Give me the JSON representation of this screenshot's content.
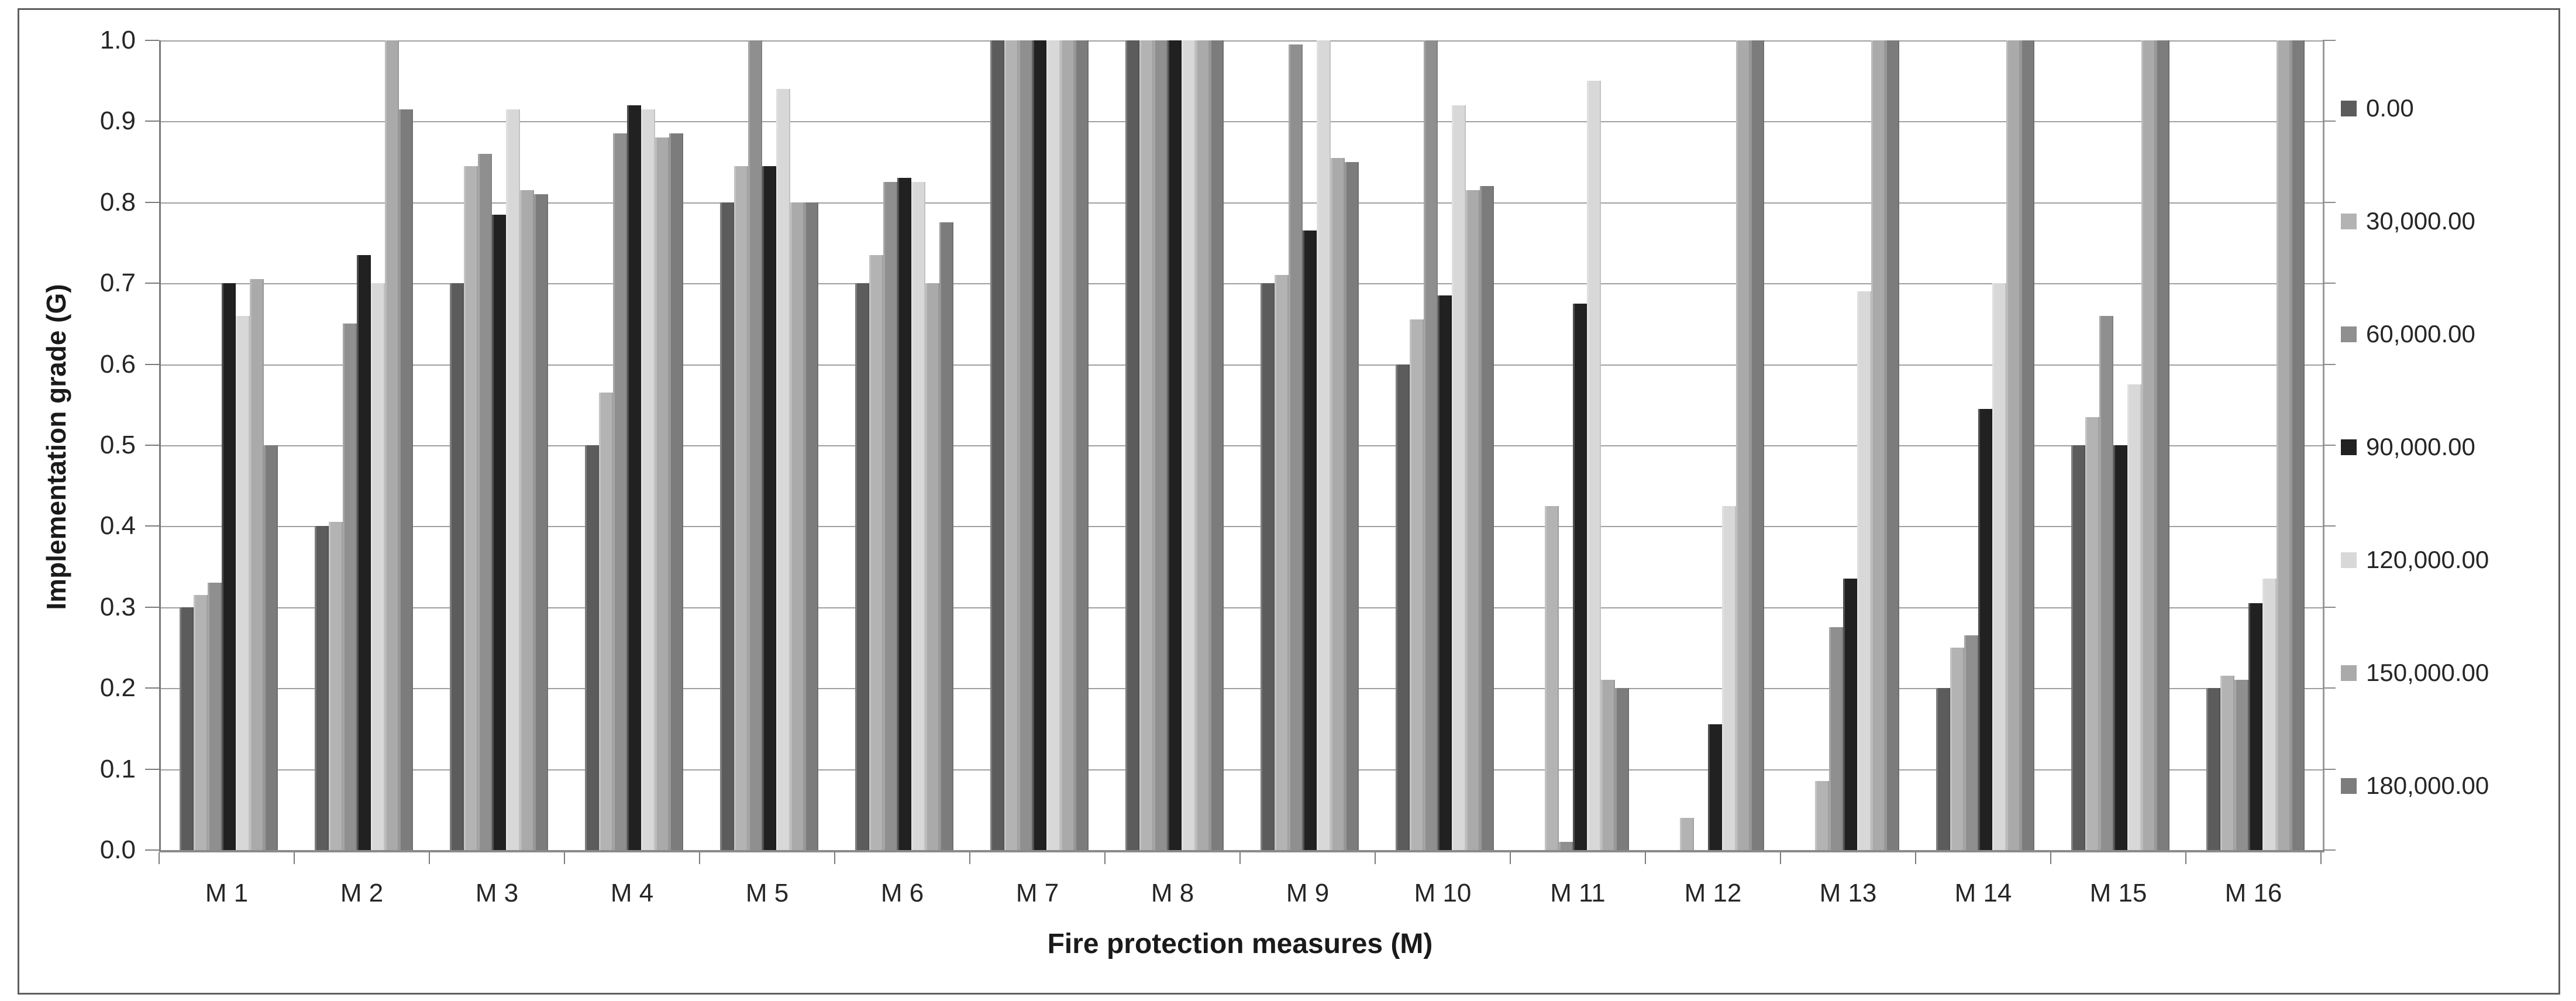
{
  "chart_data": {
    "type": "bar",
    "title": "",
    "xlabel": "Fire protection measures (M)",
    "ylabel": "Implementation grade (G)",
    "ylim": [
      0.0,
      1.0
    ],
    "ytick_step": 0.1,
    "ytick_labels": [
      "0.0",
      "0.1",
      "0.2",
      "0.3",
      "0.4",
      "0.5",
      "0.6",
      "0.7",
      "0.8",
      "0.9",
      "1.0"
    ],
    "grid": "horizontal",
    "legend_position": "right",
    "plot_border_color": "#8a8a8a",
    "gridline_color": "#9f9f9f",
    "categories": [
      "M 1",
      "M 2",
      "M 3",
      "M 4",
      "M 5",
      "M 6",
      "M 7",
      "M 8",
      "M 9",
      "M 10",
      "M 11",
      "M 12",
      "M 13",
      "M 14",
      "M 15",
      "M 16"
    ],
    "series": [
      {
        "name": "0.00",
        "color": "#5c5c5c",
        "values": [
          0.3,
          0.4,
          0.7,
          0.5,
          0.8,
          0.7,
          1.0,
          1.0,
          0.7,
          0.6,
          0.0,
          0.0,
          0.0,
          0.2,
          0.5,
          0.2
        ]
      },
      {
        "name": "30,000.00",
        "color": "#b3b3b3",
        "values": [
          0.315,
          0.405,
          0.845,
          0.565,
          0.845,
          0.735,
          1.0,
          1.0,
          0.71,
          0.655,
          0.425,
          0.04,
          0.085,
          0.25,
          0.535,
          0.215
        ]
      },
      {
        "name": "60,000.00",
        "color": "#8f8f8f",
        "values": [
          0.33,
          0.65,
          0.86,
          0.885,
          1.0,
          0.825,
          1.0,
          1.0,
          0.995,
          1.0,
          0.01,
          0.0,
          0.275,
          0.265,
          0.66,
          0.21
        ]
      },
      {
        "name": "90,000.00",
        "color": "#212121",
        "values": [
          0.7,
          0.735,
          0.785,
          0.92,
          0.845,
          0.83,
          1.0,
          1.0,
          0.765,
          0.685,
          0.675,
          0.155,
          0.335,
          0.545,
          0.5,
          0.305
        ]
      },
      {
        "name": "120,000.00",
        "color": "#d8d8d8",
        "values": [
          0.66,
          0.7,
          0.915,
          0.915,
          0.94,
          0.825,
          1.0,
          1.0,
          1.0,
          0.92,
          0.95,
          0.425,
          0.69,
          0.7,
          0.575,
          0.335
        ]
      },
      {
        "name": "150,000.00",
        "color": "#aaaaaa",
        "values": [
          0.705,
          1.0,
          0.815,
          0.88,
          0.8,
          0.7,
          1.0,
          1.0,
          0.855,
          0.815,
          0.21,
          1.0,
          1.0,
          1.0,
          1.0,
          1.0
        ]
      },
      {
        "name": "180,000.00",
        "color": "#7c7c7c",
        "values": [
          0.5,
          0.915,
          0.81,
          0.885,
          0.8,
          0.775,
          1.0,
          1.0,
          0.85,
          0.82,
          0.2,
          1.0,
          1.0,
          1.0,
          1.0,
          1.0
        ]
      }
    ]
  }
}
